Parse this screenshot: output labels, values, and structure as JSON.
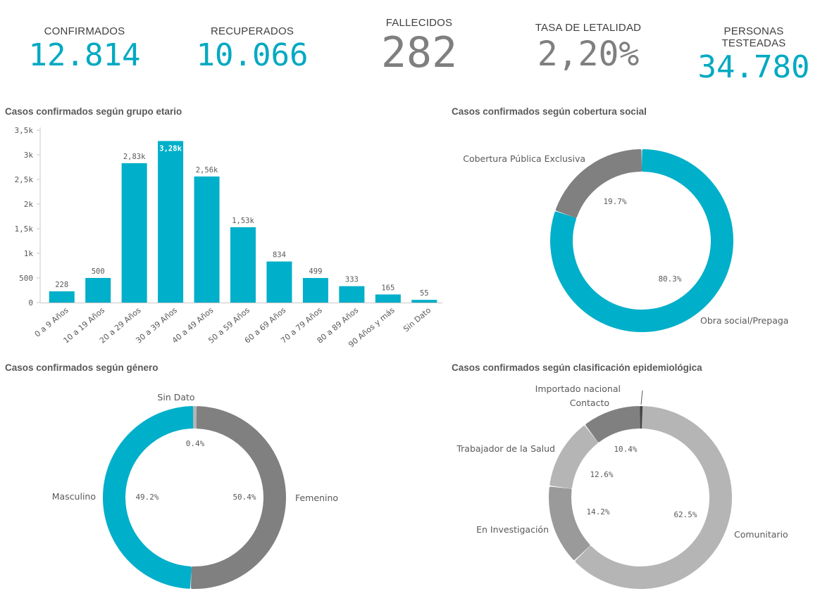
{
  "kpis": [
    {
      "label": "CONFIRMADOS",
      "value": "12.814",
      "color": "#00a9c2"
    },
    {
      "label": "RECUPERADOS",
      "value": "10.066",
      "color": "#00a9c2"
    },
    {
      "label": "FALLECIDOS",
      "value": "282",
      "color": "#7f7f7f"
    },
    {
      "label": "TASA DE LETALIDAD",
      "value": "2,20%",
      "color": "#7f7f7f"
    },
    {
      "label": "PERSONAS TESTEADAS",
      "value": "34.780",
      "color": "#00a9c2"
    }
  ],
  "chart_data": [
    {
      "type": "bar",
      "title": "Casos confirmados según grupo etario",
      "categories": [
        "0 a 9 Años",
        "10 a 19 Años",
        "20 a 29 Años",
        "30 a 39 Años",
        "40 a 49 Años",
        "50 a 59 Años",
        "60 a 69 Años",
        "70 a 79 Años",
        "80 a 89 Años",
        "90 Años y más",
        "Sin Dato"
      ],
      "values": [
        228,
        500,
        2830,
        3280,
        2560,
        1530,
        834,
        499,
        333,
        165,
        55
      ],
      "value_labels": [
        "228",
        "500",
        "2,83k",
        "3,28k",
        "2,56k",
        "1,53k",
        "834",
        "499",
        "333",
        "165",
        "55"
      ],
      "ylim": [
        0,
        3500
      ],
      "yticks": [
        0,
        500,
        1000,
        1500,
        2000,
        2500,
        3000,
        3500
      ],
      "ytick_labels": [
        "0",
        "500",
        "1k",
        "1,5k",
        "2k",
        "2,5k",
        "3k",
        "3,5k"
      ],
      "color": "#00afc9",
      "highlight_index": 3
    },
    {
      "type": "pie",
      "title": "Casos confirmados según cobertura social",
      "slices": [
        {
          "label": "Obra social/Prepaga",
          "value": 80.3,
          "pct_label": "80.3%",
          "color": "#00afc9"
        },
        {
          "label": "Cobertura Pública Exclusiva",
          "value": 19.7,
          "pct_label": "19.7%",
          "color": "#808080"
        }
      ]
    },
    {
      "type": "pie",
      "title": "Casos confirmados según género",
      "slices": [
        {
          "label": "Femenino",
          "value": 50.4,
          "pct_label": "50.4%",
          "color": "#808080"
        },
        {
          "label": "Masculino",
          "value": 49.2,
          "pct_label": "49.2%",
          "color": "#00afc9"
        },
        {
          "label": "Sin Dato",
          "value": 0.4,
          "pct_label": "0.4%",
          "color": "#b5b5b5"
        }
      ]
    },
    {
      "type": "pie",
      "title": "Casos confirmados según clasificación epidemiológica",
      "slices": [
        {
          "label": "Importado nacional",
          "value": 0.3,
          "pct_label": "",
          "color": "#444444"
        },
        {
          "label": "Comunitario",
          "value": 62.5,
          "pct_label": "62.5%",
          "color": "#b5b5b5"
        },
        {
          "label": "En Investigación",
          "value": 14.2,
          "pct_label": "14.2%",
          "color": "#9a9a9a"
        },
        {
          "label": "Trabajador de la Salud",
          "value": 12.6,
          "pct_label": "12.6%",
          "color": "#b5b5b5"
        },
        {
          "label": "Contacto",
          "value": 10.4,
          "pct_label": "10.4%",
          "color": "#808080"
        }
      ]
    }
  ]
}
